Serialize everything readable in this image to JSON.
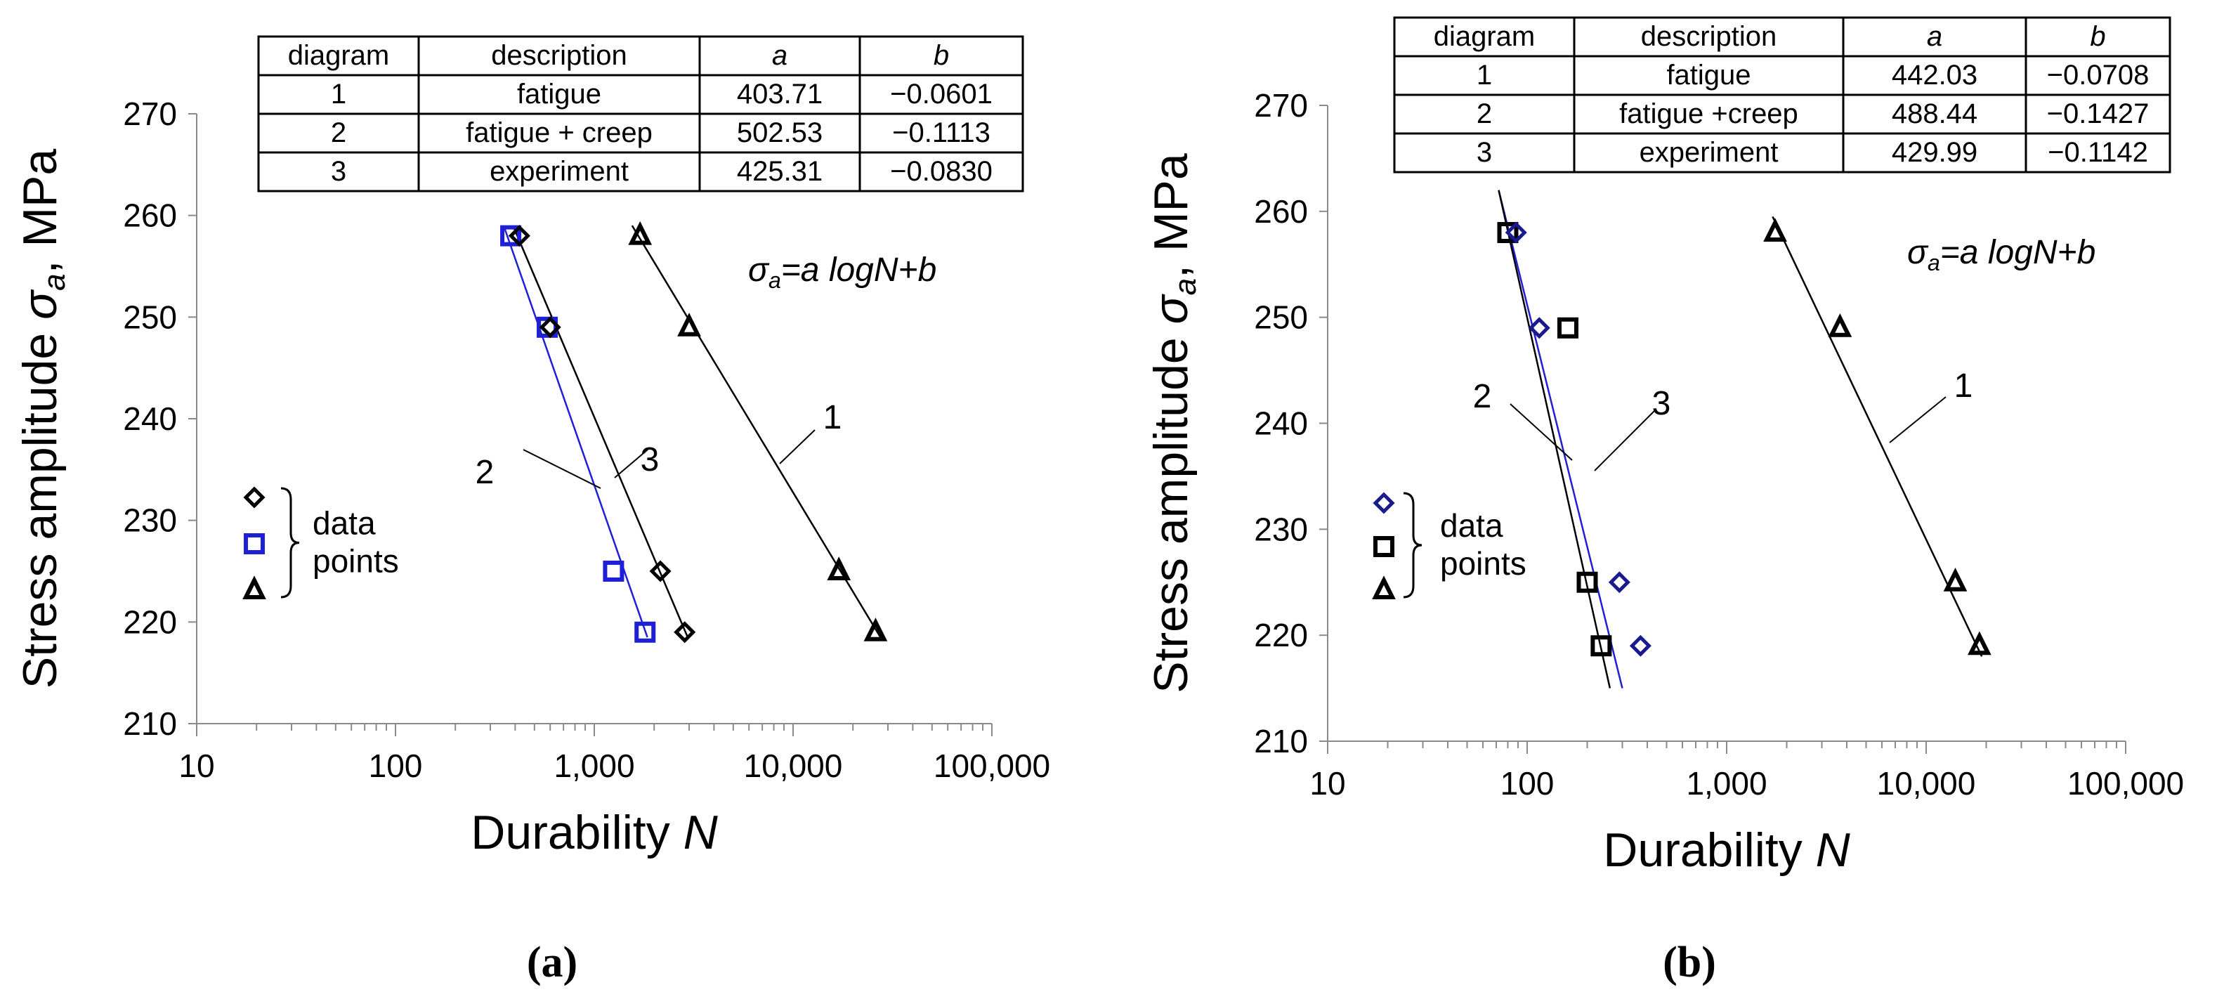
{
  "chart_data": [
    {
      "type": "scatter",
      "panel_label": "(a)",
      "xlabel": "Durability",
      "xlabel_symbol": "N",
      "ylabel": "Stress amplitude",
      "ylabel_symbol": "σ",
      "ylabel_subscript": "a",
      "ylabel_unit": ", MPa",
      "x_scale": "log",
      "xlim": [
        10,
        100000
      ],
      "ylim": [
        210,
        270
      ],
      "x_ticks": [
        "10",
        "100",
        "1,000",
        "10,000",
        "100,000"
      ],
      "y_ticks": [
        "210",
        "220",
        "230",
        "240",
        "250",
        "260",
        "270"
      ],
      "grid": false,
      "equation": "σa=a logN+b",
      "table": {
        "headers": [
          "diagram",
          "description",
          "a",
          "b"
        ],
        "rows": [
          [
            "1",
            "fatigue",
            "403.71",
            "−0.0601"
          ],
          [
            "2",
            "fatigue + creep",
            "502.53",
            "−0.1113"
          ],
          [
            "3",
            "experiment",
            "425.31",
            "−0.0830"
          ]
        ]
      },
      "legend": {
        "label_line1": "data",
        "label_line2": "points",
        "position": "left"
      },
      "series": [
        {
          "marker": "triangle",
          "color": "#000000",
          "points": [
            [
              1700,
              258
            ],
            [
              3000,
              249
            ],
            [
              17000,
              225
            ],
            [
              26000,
              219
            ]
          ]
        },
        {
          "marker": "square",
          "color": "#1f1fd6",
          "points": [
            [
              380,
              258
            ],
            [
              580,
              249
            ],
            [
              1250,
              225
            ],
            [
              1800,
              219
            ]
          ]
        },
        {
          "marker": "diamond",
          "color": "#000000",
          "points": [
            [
              420,
              258
            ],
            [
              600,
              249
            ],
            [
              2150,
              225
            ],
            [
              2850,
              219
            ]
          ]
        }
      ],
      "lines": [
        {
          "label": "1",
          "color": "#000000",
          "from": [
            1550,
            259
          ],
          "to": [
            27500,
            218.5
          ]
        },
        {
          "label": "2",
          "color": "#1f1fd6",
          "from": [
            350,
            259
          ],
          "to": [
            1850,
            218.5
          ]
        },
        {
          "label": "3",
          "color": "#000000",
          "from": [
            390,
            259
          ],
          "to": [
            2950,
            218.5
          ]
        }
      ]
    },
    {
      "type": "scatter",
      "panel_label": "(b)",
      "xlabel": "Durability",
      "xlabel_symbol": "N",
      "ylabel": "Stress amplitude",
      "ylabel_symbol": "σ",
      "ylabel_subscript": "a",
      "ylabel_unit": ", MPa",
      "x_scale": "log",
      "xlim": [
        10,
        100000
      ],
      "ylim": [
        210,
        270
      ],
      "x_ticks": [
        "10",
        "100",
        "1,000",
        "10,000",
        "100,000"
      ],
      "y_ticks": [
        "210",
        "220",
        "230",
        "240",
        "250",
        "260",
        "270"
      ],
      "grid": false,
      "equation": "σa=a logN+b",
      "table": {
        "headers": [
          "diagram",
          "description",
          "a",
          "b"
        ],
        "rows": [
          [
            "1",
            "fatigue",
            "442.03",
            "−0.0708"
          ],
          [
            "2",
            "fatigue +creep",
            "488.44",
            "−0.1427"
          ],
          [
            "3",
            "experiment",
            "429.99",
            "−0.1142"
          ]
        ]
      },
      "legend": {
        "label_line1": "data",
        "label_line2": "points",
        "position": "left"
      },
      "series": [
        {
          "marker": "triangle",
          "color": "#000000",
          "points": [
            [
              1750,
              258
            ],
            [
              3700,
              249
            ],
            [
              14000,
              225
            ],
            [
              18500,
              219
            ]
          ]
        },
        {
          "marker": "square",
          "color": "#000000",
          "points": [
            [
              80,
              258
            ],
            [
              160,
              249
            ],
            [
              200,
              225
            ],
            [
              235,
              219
            ]
          ]
        },
        {
          "marker": "diamond",
          "color": "#1a1a8c",
          "points": [
            [
              88,
              258
            ],
            [
              115,
              249
            ],
            [
              290,
              225
            ],
            [
              370,
              219
            ]
          ]
        }
      ],
      "lines": [
        {
          "label": "1",
          "color": "#000000",
          "from": [
            1700,
            259.5
          ],
          "to": [
            19000,
            218
          ]
        },
        {
          "label": "2",
          "color": "#1f1fd6",
          "from": [
            72,
            262
          ],
          "to": [
            300,
            215
          ]
        },
        {
          "label": "3",
          "color": "#000000",
          "from": [
            72,
            262
          ],
          "to": [
            260,
            215
          ]
        }
      ]
    }
  ]
}
